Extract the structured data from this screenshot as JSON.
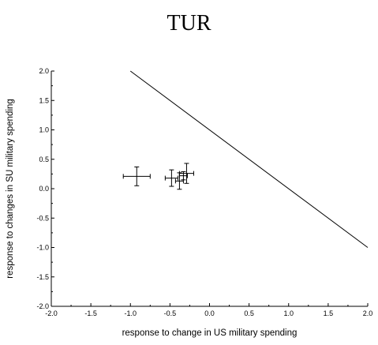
{
  "chart_data": {
    "type": "scatter",
    "title": "TUR",
    "xlabel": "response to change in US military spending",
    "ylabel": "response to changes in SU military spending",
    "xlim": [
      -2.0,
      2.0
    ],
    "ylim": [
      -2.0,
      2.0
    ],
    "x_ticks": [
      "-2.0",
      "-1.5",
      "-1.0",
      "-0.5",
      "0.0",
      "0.5",
      "1.0",
      "1.5",
      "2.0"
    ],
    "y_ticks": [
      "-2.0",
      "-1.5",
      "-1.0",
      "-0.5",
      "0.0",
      "0.5",
      "1.0",
      "1.5",
      "2.0"
    ],
    "grid": false,
    "legend": "none",
    "line": {
      "x": [
        -1.0,
        2.0
      ],
      "y": [
        2.0,
        -1.0
      ]
    },
    "points": [
      {
        "x": -0.92,
        "y": 0.21,
        "xerr": 0.17,
        "yerr": 0.16
      },
      {
        "x": -0.48,
        "y": 0.18,
        "xerr": 0.08,
        "yerr": 0.14
      },
      {
        "x": -0.38,
        "y": 0.13,
        "xerr": 0.05,
        "yerr": 0.14
      },
      {
        "x": -0.33,
        "y": 0.22,
        "xerr": 0.05,
        "yerr": 0.07
      },
      {
        "x": -0.29,
        "y": 0.26,
        "xerr": 0.09,
        "yerr": 0.17
      }
    ]
  }
}
